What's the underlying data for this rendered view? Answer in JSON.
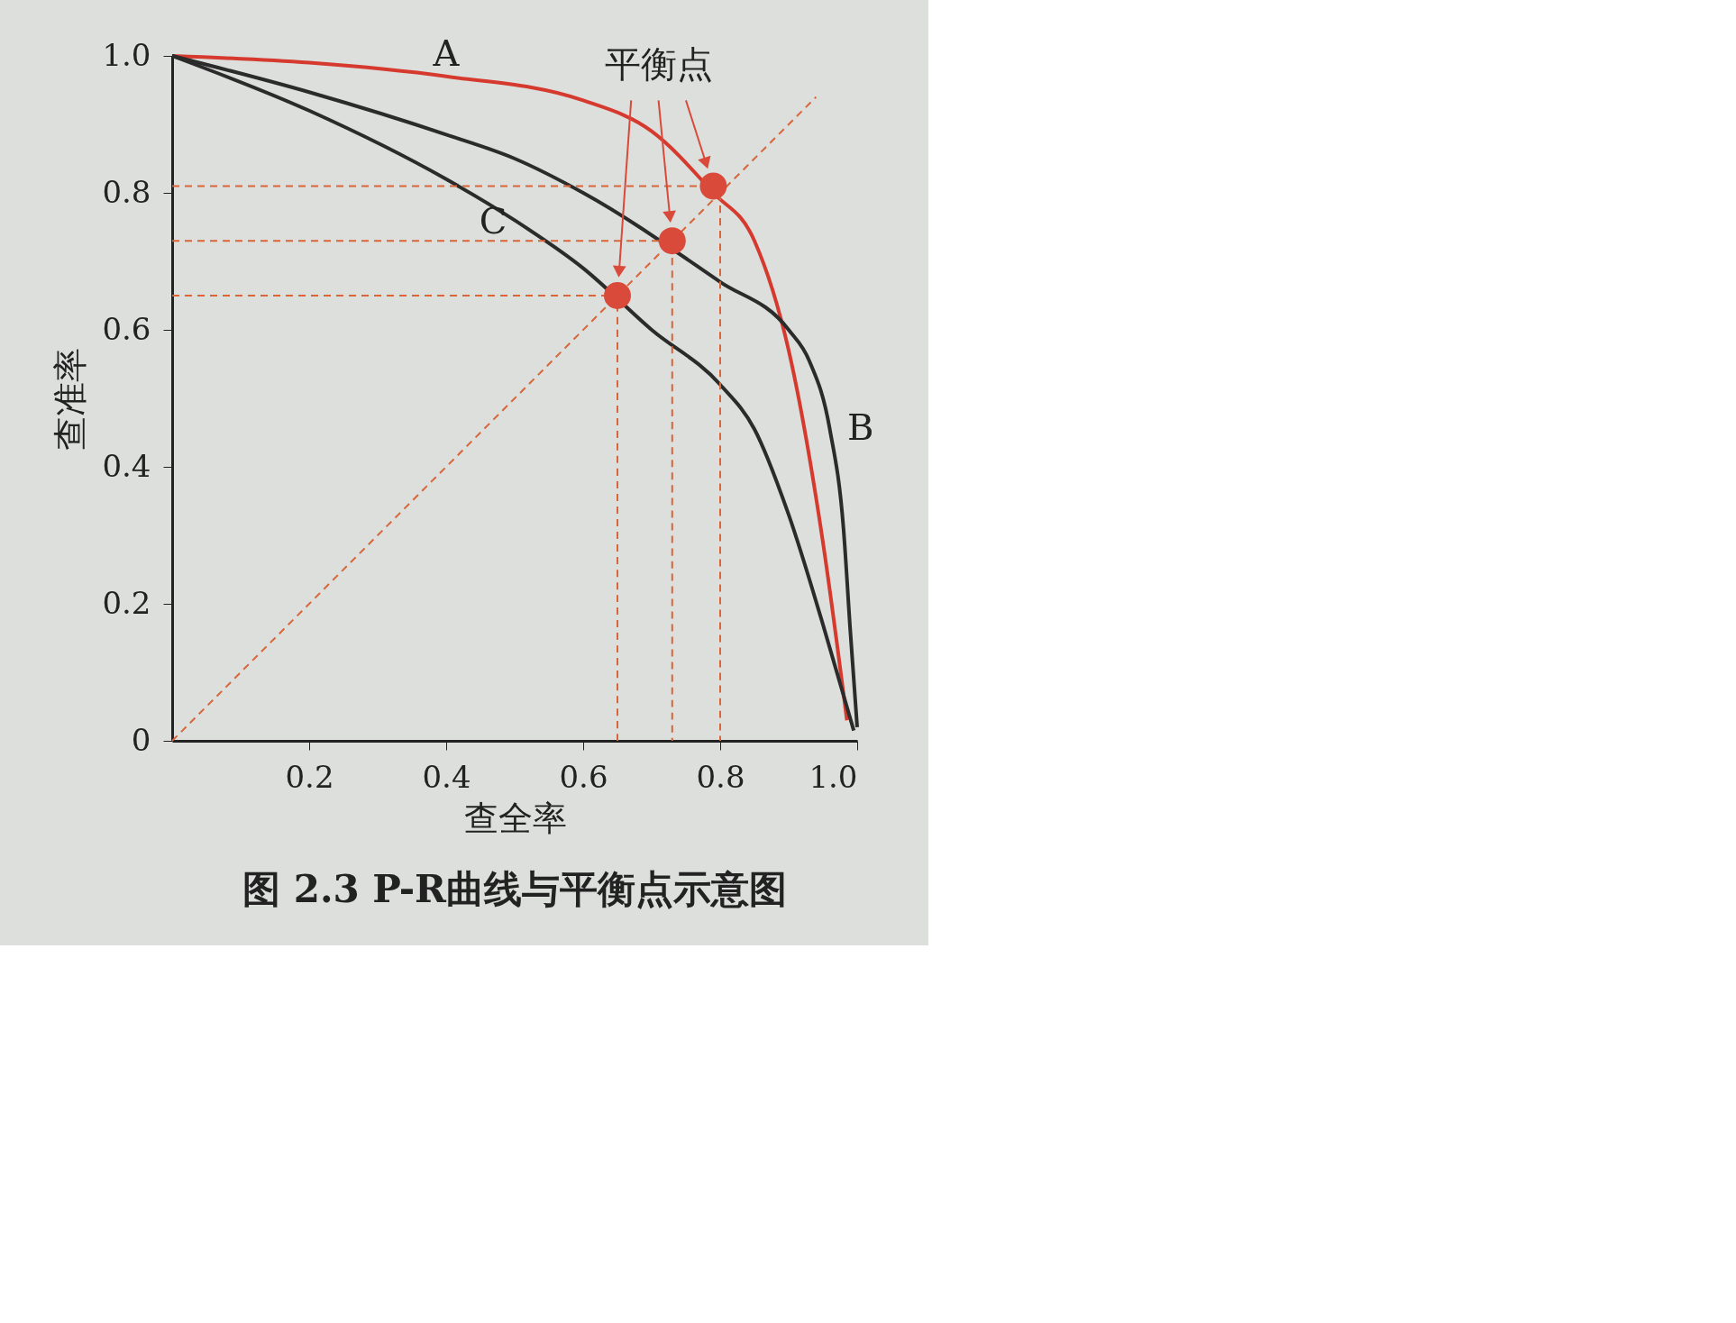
{
  "chart_data": {
    "type": "line",
    "title": "图 2.3  P-R曲线与平衡点示意图",
    "xlabel": "查全率",
    "ylabel": "查准率",
    "xlim": [
      0,
      1
    ],
    "ylim": [
      0,
      1
    ],
    "xticks": [
      0.2,
      0.4,
      0.6,
      0.8,
      {
        "value": 1,
        "label": "1.0"
      }
    ],
    "yticks": [
      0,
      0.2,
      0.4,
      0.6,
      0.8,
      {
        "value": 1,
        "label": "1.0"
      }
    ],
    "series": [
      {
        "name": "A",
        "color": "#d63a2f",
        "line_style": "solid",
        "x": [
          0,
          0.2,
          0.4,
          0.6,
          0.7,
          0.79,
          0.85,
          0.9,
          0.95,
          0.985
        ],
        "values": [
          1.0,
          0.99,
          0.97,
          0.935,
          0.89,
          0.8,
          0.73,
          0.57,
          0.29,
          0.03
        ]
      },
      {
        "name": "B",
        "color": "#2b2b2b",
        "line_style": "solid",
        "x": [
          0,
          0.2,
          0.4,
          0.5,
          0.6,
          0.8,
          0.9,
          0.93,
          0.96,
          0.98,
          0.99,
          1.0
        ],
        "values": [
          1.0,
          0.947,
          0.885,
          0.85,
          0.8,
          0.67,
          0.6,
          0.555,
          0.455,
          0.31,
          0.16,
          0.02
        ]
      },
      {
        "name": "C",
        "color": "#2b2b2b",
        "line_style": "solid",
        "x": [
          0,
          0.2,
          0.4,
          0.5,
          0.6,
          0.7,
          0.8,
          0.85,
          0.9,
          0.95,
          0.995
        ],
        "values": [
          1.0,
          0.92,
          0.82,
          0.76,
          0.69,
          0.6,
          0.52,
          0.455,
          0.33,
          0.17,
          0.015
        ]
      },
      {
        "color": "#d9653a",
        "line_style": "dashed",
        "x": [
          0,
          0.94
        ],
        "values": [
          0,
          0.94
        ]
      },
      {
        "color": "#d9653a",
        "line_style": "dashed",
        "x": [
          0,
          0.65,
          0.65
        ],
        "values": [
          0.65,
          0.65,
          0
        ]
      },
      {
        "color": "#d9653a",
        "line_style": "dashed",
        "x": [
          0,
          0.73,
          0.73
        ],
        "values": [
          0.73,
          0.73,
          0
        ]
      },
      {
        "color": "#d9653a",
        "line_style": "dashed",
        "x": [
          0,
          0.8,
          0.8
        ],
        "values": [
          0.81,
          0.81,
          0
        ]
      },
      {
        "type": "scatter",
        "color": "#d94a3a",
        "marker": "circle",
        "x": [
          0.65,
          0.73,
          0.79
        ],
        "values": [
          0.65,
          0.73,
          0.81
        ]
      }
    ],
    "annotations": [
      "平衡点"
    ]
  }
}
